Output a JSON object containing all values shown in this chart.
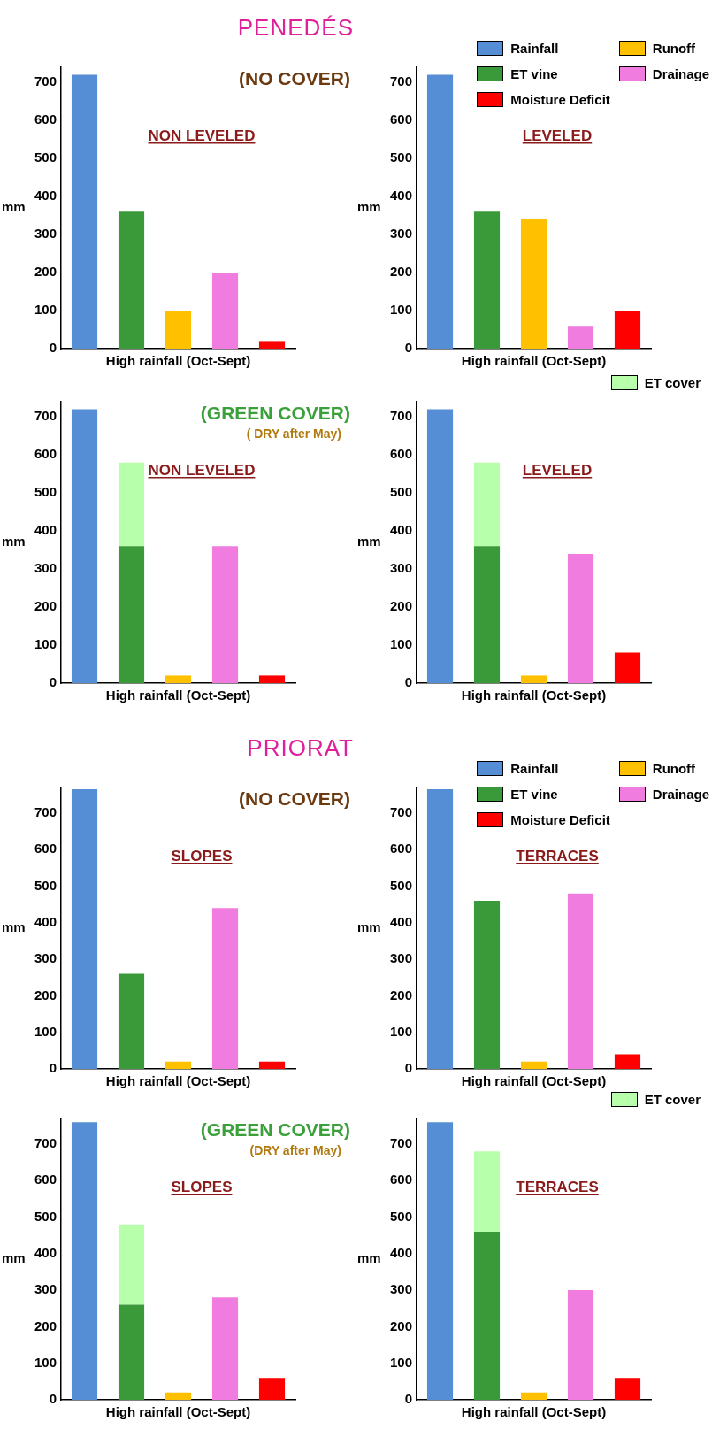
{
  "chart_data": [
    {
      "type": "bar",
      "title": "PENEDÉS",
      "xlabel": "High rainfall (Oct-Sept)",
      "ylabel": "mm",
      "annotations": [
        "(NO COVER)",
        "NON LEVELED"
      ],
      "categories": [
        null,
        null,
        null,
        null,
        null
      ],
      "stacked": true,
      "grid": false,
      "legend": false,
      "ylim": [
        0,
        740
      ],
      "yticks": [
        0,
        100,
        200,
        300,
        400,
        500,
        600,
        700
      ],
      "series": [
        {
          "color": "#558ed5",
          "values": [
            720,
            null,
            null,
            null,
            null
          ]
        },
        {
          "color": "#ffc000",
          "values": [
            null,
            null,
            100,
            null,
            null
          ]
        },
        {
          "color": "#3a9a3a",
          "values": [
            null,
            360,
            null,
            null,
            null
          ]
        },
        {
          "color": "#f07ce0",
          "values": [
            null,
            null,
            null,
            200,
            null
          ]
        },
        {
          "color": "#ff0000",
          "values": [
            null,
            null,
            null,
            null,
            20
          ]
        }
      ]
    },
    {
      "type": "bar",
      "xlabel": "High rainfall (Oct-Sept)",
      "ylabel": "mm",
      "annotations": [
        "LEVELED"
      ],
      "categories": [
        null,
        null,
        null,
        null,
        null
      ],
      "stacked": true,
      "grid": false,
      "legend": "top right",
      "ylim": [
        0,
        740
      ],
      "yticks": [
        0,
        100,
        200,
        300,
        400,
        500,
        600,
        700
      ],
      "series": [
        {
          "name": "Rainfall",
          "color": "#558ed5",
          "values": [
            720,
            null,
            null,
            null,
            null
          ]
        },
        {
          "name": "Runoff",
          "color": "#ffc000",
          "values": [
            null,
            null,
            340,
            null,
            null
          ]
        },
        {
          "name": "ET vine",
          "color": "#3a9a3a",
          "values": [
            null,
            360,
            null,
            null,
            null
          ]
        },
        {
          "name": "Drainage",
          "color": "#f07ce0",
          "values": [
            null,
            null,
            null,
            60,
            null
          ]
        },
        {
          "name": "Moisture Deficit",
          "color": "#ff0000",
          "values": [
            null,
            null,
            null,
            null,
            100
          ]
        }
      ]
    },
    {
      "type": "bar",
      "xlabel": "High rainfall (Oct-Sept)",
      "ylabel": "mm",
      "annotations": [
        "(GREEN COVER)",
        "( DRY after May)",
        "NON LEVELED"
      ],
      "categories": [
        null,
        null,
        null,
        null,
        null
      ],
      "stacked": true,
      "grid": false,
      "legend": false,
      "ylim": [
        0,
        740
      ],
      "yticks": [
        0,
        100,
        200,
        300,
        400,
        500,
        600,
        700
      ],
      "series": [
        {
          "color": "#558ed5",
          "values": [
            720,
            null,
            null,
            null,
            null
          ]
        },
        {
          "color": "#ffc000",
          "values": [
            null,
            null,
            20,
            null,
            null
          ]
        },
        {
          "color": "#3a9a3a",
          "values": [
            null,
            360,
            null,
            null,
            null
          ]
        },
        {
          "color": "#f07ce0",
          "values": [
            null,
            null,
            null,
            360,
            null
          ]
        },
        {
          "color": "#ff0000",
          "values": [
            null,
            null,
            null,
            null,
            20
          ]
        },
        {
          "color": "#b7ffaa",
          "values": [
            null,
            220,
            null,
            null,
            null
          ]
        }
      ]
    },
    {
      "type": "bar",
      "xlabel": "High rainfall (Oct-Sept)",
      "ylabel": "mm",
      "annotations": [
        "LEVELED"
      ],
      "categories": [
        null,
        null,
        null,
        null,
        null
      ],
      "stacked": true,
      "grid": false,
      "legend": "top right",
      "ylim": [
        0,
        740
      ],
      "yticks": [
        0,
        100,
        200,
        300,
        400,
        500,
        600,
        700
      ],
      "series": [
        {
          "color": "#558ed5",
          "values": [
            720,
            null,
            null,
            null,
            null
          ]
        },
        {
          "color": "#ffc000",
          "values": [
            null,
            null,
            20,
            null,
            null
          ]
        },
        {
          "color": "#3a9a3a",
          "values": [
            null,
            360,
            null,
            null,
            null
          ]
        },
        {
          "color": "#f07ce0",
          "values": [
            null,
            null,
            null,
            340,
            null
          ]
        },
        {
          "color": "#ff0000",
          "values": [
            null,
            null,
            null,
            null,
            80
          ]
        },
        {
          "name": "ET cover",
          "color": "#b7ffaa",
          "values": [
            null,
            220,
            null,
            null,
            null
          ]
        }
      ]
    },
    {
      "type": "bar",
      "title": "PRIORAT",
      "xlabel": "High rainfall (Oct-Sept)",
      "ylabel": "mm",
      "annotations": [
        "(NO COVER)",
        "SLOPES"
      ],
      "categories": [
        null,
        null,
        null,
        null,
        null
      ],
      "stacked": true,
      "grid": false,
      "legend": false,
      "ylim": [
        0,
        770
      ],
      "yticks": [
        0,
        100,
        200,
        300,
        400,
        500,
        600,
        700
      ],
      "series": [
        {
          "color": "#558ed5",
          "values": [
            765,
            null,
            null,
            null,
            null
          ]
        },
        {
          "color": "#ffc000",
          "values": [
            null,
            null,
            20,
            null,
            null
          ]
        },
        {
          "color": "#3a9a3a",
          "values": [
            null,
            260,
            null,
            null,
            null
          ]
        },
        {
          "color": "#f07ce0",
          "values": [
            null,
            null,
            null,
            440,
            null
          ]
        },
        {
          "color": "#ff0000",
          "values": [
            null,
            null,
            null,
            null,
            20
          ]
        }
      ]
    },
    {
      "type": "bar",
      "xlabel": "High rainfall (Oct-Sept)",
      "ylabel": "mm",
      "annotations": [
        "TERRACES"
      ],
      "categories": [
        null,
        null,
        null,
        null,
        null
      ],
      "stacked": true,
      "grid": false,
      "legend": "top right",
      "ylim": [
        0,
        770
      ],
      "yticks": [
        0,
        100,
        200,
        300,
        400,
        500,
        600,
        700
      ],
      "series": [
        {
          "name": "Rainfall",
          "color": "#558ed5",
          "values": [
            765,
            null,
            null,
            null,
            null
          ]
        },
        {
          "name": "Runoff",
          "color": "#ffc000",
          "values": [
            null,
            null,
            20,
            null,
            null
          ]
        },
        {
          "name": "ET vine",
          "color": "#3a9a3a",
          "values": [
            null,
            460,
            null,
            null,
            null
          ]
        },
        {
          "name": "Drainage",
          "color": "#f07ce0",
          "values": [
            null,
            null,
            null,
            480,
            null
          ]
        },
        {
          "name": "Moisture Deficit",
          "color": "#ff0000",
          "values": [
            null,
            null,
            null,
            null,
            40
          ]
        }
      ]
    },
    {
      "type": "bar",
      "xlabel": "High rainfall (Oct-Sept)",
      "ylabel": "mm",
      "annotations": [
        "(GREEN COVER)",
        "(DRY after May)",
        "SLOPES"
      ],
      "categories": [
        null,
        null,
        null,
        null,
        null
      ],
      "stacked": true,
      "grid": false,
      "legend": false,
      "ylim": [
        0,
        770
      ],
      "yticks": [
        0,
        100,
        200,
        300,
        400,
        500,
        600,
        700
      ],
      "series": [
        {
          "color": "#558ed5",
          "values": [
            760,
            null,
            null,
            null,
            null
          ]
        },
        {
          "color": "#ffc000",
          "values": [
            null,
            null,
            20,
            null,
            null
          ]
        },
        {
          "color": "#3a9a3a",
          "values": [
            null,
            260,
            null,
            null,
            null
          ]
        },
        {
          "color": "#f07ce0",
          "values": [
            null,
            null,
            null,
            280,
            null
          ]
        },
        {
          "color": "#ff0000",
          "values": [
            null,
            null,
            null,
            null,
            60
          ]
        },
        {
          "color": "#b7ffaa",
          "values": [
            null,
            220,
            null,
            null,
            null
          ]
        }
      ]
    },
    {
      "type": "bar",
      "xlabel": "High rainfall (Oct-Sept)",
      "ylabel": "mm",
      "annotations": [
        "TERRACES"
      ],
      "categories": [
        null,
        null,
        null,
        null,
        null
      ],
      "stacked": true,
      "grid": false,
      "legend": "top right",
      "ylim": [
        0,
        770
      ],
      "yticks": [
        0,
        100,
        200,
        300,
        400,
        500,
        600,
        700
      ],
      "series": [
        {
          "color": "#558ed5",
          "values": [
            760,
            null,
            null,
            null,
            null
          ]
        },
        {
          "color": "#ffc000",
          "values": [
            null,
            null,
            20,
            null,
            null
          ]
        },
        {
          "color": "#3a9a3a",
          "values": [
            null,
            460,
            null,
            null,
            null
          ]
        },
        {
          "color": "#f07ce0",
          "values": [
            null,
            null,
            null,
            300,
            null
          ]
        },
        {
          "color": "#ff0000",
          "values": [
            null,
            null,
            null,
            null,
            60
          ]
        },
        {
          "name": "ET cover",
          "color": "#b7ffaa",
          "values": [
            null,
            220,
            null,
            null,
            null
          ]
        }
      ]
    }
  ]
}
